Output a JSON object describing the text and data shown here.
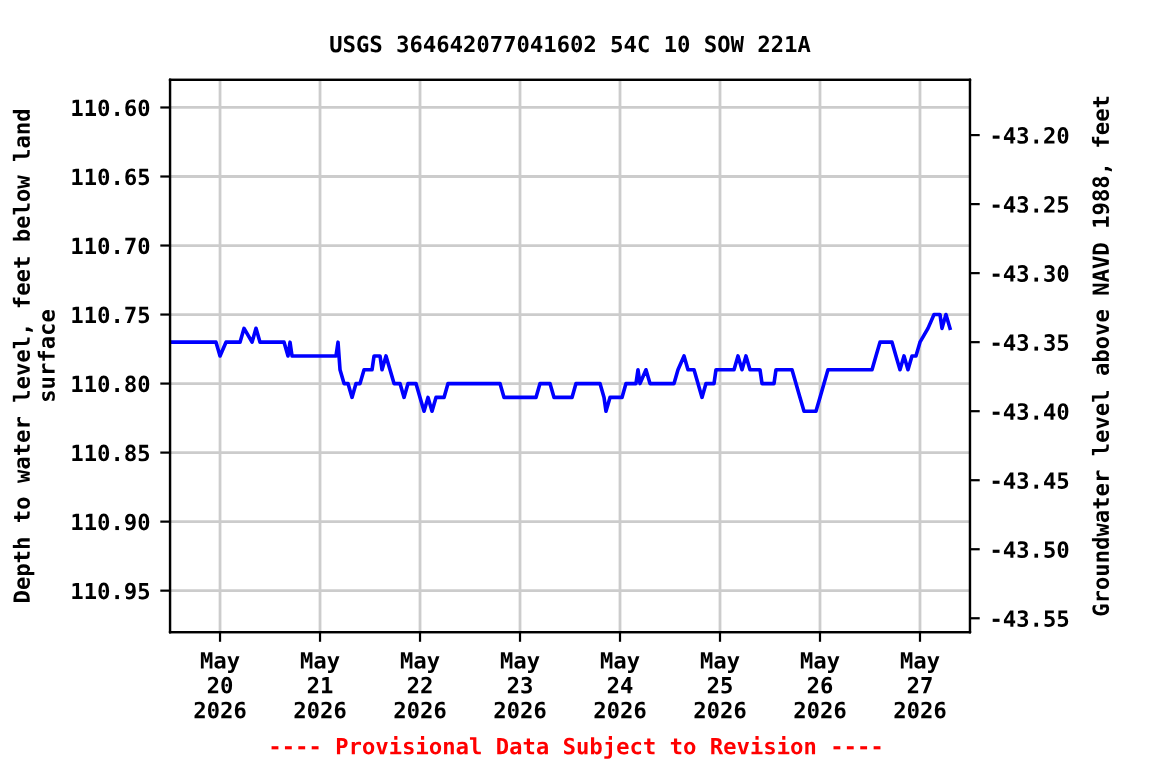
{
  "chart_data": {
    "type": "line",
    "title": "USGS 364642077041602 54C 10 SOW 221A",
    "ylabel": "Depth to water level, feet below land\nsurface",
    "y2label": "Groundwater level above NAVD 1988, feet",
    "annotations": [
      "---- Provisional Data Subject to Revision ----"
    ],
    "x": [
      "2026-05-19T12:00",
      "2026-05-19T23:02",
      "2026-05-20T00:00",
      "2026-05-20T01:26",
      "2026-05-20T04:48",
      "2026-05-20T05:46",
      "2026-05-20T07:41",
      "2026-05-20T08:38",
      "2026-05-20T09:36",
      "2026-05-20T15:22",
      "2026-05-20T16:19",
      "2026-05-20T16:48",
      "2026-05-20T17:17",
      "2026-05-21T03:50",
      "2026-05-21T04:19",
      "2026-05-21T04:48",
      "2026-05-21T05:46",
      "2026-05-21T06:43",
      "2026-05-21T07:41",
      "2026-05-21T08:38",
      "2026-05-21T09:36",
      "2026-05-21T10:34",
      "2026-05-21T12:29",
      "2026-05-21T12:58",
      "2026-05-21T14:24",
      "2026-05-21T14:53",
      "2026-05-21T15:50",
      "2026-05-21T16:48",
      "2026-05-21T17:46",
      "2026-05-21T19:12",
      "2026-05-21T20:10",
      "2026-05-21T21:07",
      "2026-05-21T23:02",
      "2026-05-22T00:00",
      "2026-05-22T00:58",
      "2026-05-22T01:55",
      "2026-05-22T02:53",
      "2026-05-22T03:50",
      "2026-05-22T05:46",
      "2026-05-22T06:43",
      "2026-05-22T19:12",
      "2026-05-22T20:10",
      "2026-05-23T03:50",
      "2026-05-23T04:48",
      "2026-05-23T07:12",
      "2026-05-23T08:10",
      "2026-05-23T12:29",
      "2026-05-23T13:26",
      "2026-05-23T19:12",
      "2026-05-23T20:10",
      "2026-05-23T20:38",
      "2026-05-23T21:36",
      "2026-05-24T00:29",
      "2026-05-24T01:26",
      "2026-05-24T03:50",
      "2026-05-24T04:19",
      "2026-05-24T04:48",
      "2026-05-24T06:14",
      "2026-05-24T07:12",
      "2026-05-24T12:58",
      "2026-05-24T13:55",
      "2026-05-24T15:22",
      "2026-05-24T16:19",
      "2026-05-24T17:46",
      "2026-05-24T18:43",
      "2026-05-24T19:41",
      "2026-05-24T20:38",
      "2026-05-24T22:34",
      "2026-05-24T23:02",
      "2026-05-25T03:22",
      "2026-05-25T04:19",
      "2026-05-25T05:17",
      "2026-05-25T06:14",
      "2026-05-25T07:12",
      "2026-05-25T09:36",
      "2026-05-25T10:05",
      "2026-05-25T12:58",
      "2026-05-25T13:26",
      "2026-05-25T17:17",
      "2026-05-25T18:14",
      "2026-05-25T19:12",
      "2026-05-25T20:10",
      "2026-05-25T23:02",
      "2026-05-26T00:00",
      "2026-05-26T00:58",
      "2026-05-26T01:55",
      "2026-05-26T12:29",
      "2026-05-26T13:26",
      "2026-05-26T14:24",
      "2026-05-26T17:17",
      "2026-05-26T18:14",
      "2026-05-26T19:12",
      "2026-05-26T20:10",
      "2026-05-26T21:07",
      "2026-05-26T22:05",
      "2026-05-26T23:02",
      "2026-05-27T00:00",
      "2026-05-27T01:55",
      "2026-05-27T03:22",
      "2026-05-27T04:48",
      "2026-05-27T05:17",
      "2026-05-27T06:14",
      "2026-05-27T07:12"
    ],
    "series": [
      {
        "color": "#0000ff",
        "values": [
          110.77,
          110.77,
          110.78,
          110.77,
          110.77,
          110.76,
          110.77,
          110.76,
          110.77,
          110.77,
          110.78,
          110.77,
          110.78,
          110.78,
          110.77,
          110.79,
          110.8,
          110.8,
          110.81,
          110.8,
          110.8,
          110.79,
          110.79,
          110.78,
          110.78,
          110.79,
          110.78,
          110.79,
          110.8,
          110.8,
          110.81,
          110.8,
          110.8,
          110.81,
          110.82,
          110.81,
          110.82,
          110.81,
          110.81,
          110.8,
          110.8,
          110.81,
          110.81,
          110.8,
          110.8,
          110.81,
          110.81,
          110.8,
          110.8,
          110.81,
          110.82,
          110.81,
          110.81,
          110.8,
          110.8,
          110.79,
          110.8,
          110.79,
          110.8,
          110.8,
          110.79,
          110.78,
          110.79,
          110.79,
          110.8,
          110.81,
          110.8,
          110.8,
          110.79,
          110.79,
          110.78,
          110.79,
          110.78,
          110.79,
          110.79,
          110.8,
          110.8,
          110.79,
          110.79,
          110.8,
          110.81,
          110.82,
          110.82,
          110.81,
          110.8,
          110.79,
          110.79,
          110.78,
          110.77,
          110.77,
          110.78,
          110.79,
          110.78,
          110.79,
          110.78,
          110.78,
          110.77,
          110.76,
          110.75,
          110.75,
          110.76,
          110.75,
          110.76
        ]
      }
    ],
    "xlim": [
      "2026-05-19T12:00",
      "2026-05-27T12:00"
    ],
    "xticks": [
      {
        "value": "2026-05-20",
        "label": "May\n20\n2026"
      },
      {
        "value": "2026-05-21",
        "label": "May\n21\n2026"
      },
      {
        "value": "2026-05-22",
        "label": "May\n22\n2026"
      },
      {
        "value": "2026-05-23",
        "label": "May\n23\n2026"
      },
      {
        "value": "2026-05-24",
        "label": "May\n24\n2026"
      },
      {
        "value": "2026-05-25",
        "label": "May\n25\n2026"
      },
      {
        "value": "2026-05-26",
        "label": "May\n26\n2026"
      },
      {
        "value": "2026-05-27",
        "label": "May\n27\n2026"
      }
    ],
    "ylim": [
      110.98,
      110.58
    ],
    "yticks": [
      {
        "value": 110.6,
        "label": "110.60"
      },
      {
        "value": 110.65,
        "label": "110.65"
      },
      {
        "value": 110.7,
        "label": "110.70"
      },
      {
        "value": 110.75,
        "label": "110.75"
      },
      {
        "value": 110.8,
        "label": "110.80"
      },
      {
        "value": 110.85,
        "label": "110.85"
      },
      {
        "value": 110.9,
        "label": "110.90"
      },
      {
        "value": 110.95,
        "label": "110.95"
      }
    ],
    "y2lim": [
      -43.56,
      -43.16
    ],
    "y2ticks": [
      {
        "value": -43.2,
        "label": "-43.20"
      },
      {
        "value": -43.25,
        "label": "-43.25"
      },
      {
        "value": -43.3,
        "label": "-43.30"
      },
      {
        "value": -43.35,
        "label": "-43.35"
      },
      {
        "value": -43.4,
        "label": "-43.40"
      },
      {
        "value": -43.45,
        "label": "-43.45"
      },
      {
        "value": -43.5,
        "label": "-43.50"
      },
      {
        "value": -43.55,
        "label": "-43.55"
      }
    ],
    "grid": true,
    "marker": "none",
    "line_style": "solid"
  }
}
